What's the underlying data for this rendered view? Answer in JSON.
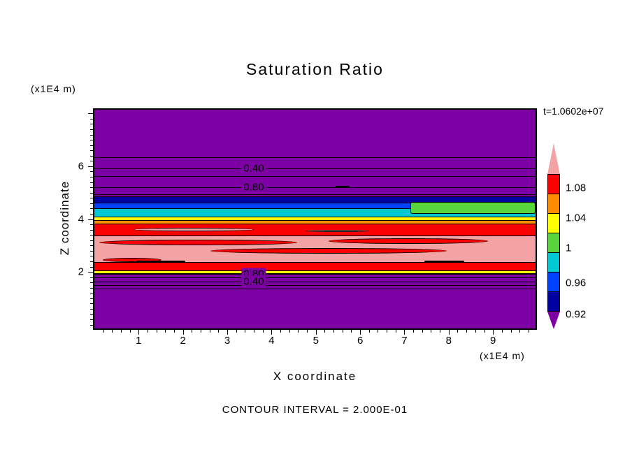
{
  "title": "Saturation Ratio",
  "annotations": {
    "time_label": "t=1.0602e+07",
    "contour_interval_label": "CONTOUR INTERVAL = 2.000E-01",
    "z_axis_unit": "(x1E4 m)",
    "x_axis_unit": "(x1E4 m)"
  },
  "axes": {
    "x_title": "X coordinate",
    "z_title": "Z coordinate",
    "x_tick_labels": [
      "1",
      "2",
      "3",
      "4",
      "5",
      "6",
      "7",
      "8",
      "9"
    ],
    "z_tick_labels": [
      "6",
      "4",
      "2"
    ]
  },
  "colorbar": {
    "labels_top_to_bottom": [
      "1.08",
      "1.04",
      "1",
      "0.96",
      "0.92"
    ],
    "segment_colors_top_to_bottom": [
      "#fa0000",
      "#ff8c00",
      "#ffff00",
      "#57d53b",
      "#00c8d2",
      "#0041ff",
      "#0000a0"
    ],
    "top_arrow_color": "#f3a3a3",
    "bottom_arrow_color": "#7d00a5"
  },
  "chart_data": {
    "type": "heatmap",
    "title": "Saturation Ratio",
    "xlabel": "X coordinate (x1E4 m)",
    "ylabel": "Z coordinate (x1E4 m)",
    "time": "t=1.0602e+07",
    "contour_interval": 0.2,
    "xlim": [
      0,
      9.96
    ],
    "zlim": [
      -0.14,
      8.14
    ],
    "x_ticks": [
      1,
      2,
      3,
      4,
      5,
      6,
      7,
      8,
      9
    ],
    "z_ticks": [
      6,
      4,
      2
    ],
    "colorbar_levels_bottom_to_top": [
      "0.92",
      "0.96",
      "1",
      "1.04",
      "1.08"
    ],
    "bands": [
      {
        "z_from": 4.85,
        "z_to": 8.14,
        "color": "#7d00a5"
      },
      {
        "z_from": 4.63,
        "z_to": 4.85,
        "color": "#0000a0"
      },
      {
        "z_from": 4.42,
        "z_to": 4.63,
        "color": "#0041ff"
      },
      {
        "z_from": 4.1,
        "z_to": 4.42,
        "color": "#00c8d2"
      },
      {
        "z_from": 3.97,
        "z_to": 4.1,
        "color": "#ffff00"
      },
      {
        "z_from": 3.82,
        "z_to": 3.97,
        "color": "#ff8c00"
      },
      {
        "z_from": 3.37,
        "z_to": 3.82,
        "color": "#fa0000"
      },
      {
        "z_from": 2.36,
        "z_to": 3.37,
        "color": "#f3a3a3"
      },
      {
        "z_from": 2.05,
        "z_to": 2.36,
        "color": "#fa0000"
      },
      {
        "z_from": 1.95,
        "z_to": 2.05,
        "color": "#ffff00"
      },
      {
        "z_from": -0.14,
        "z_to": 1.95,
        "color": "#7d00a5"
      }
    ],
    "patches": [
      {
        "x_from": 7.14,
        "x_to": 9.96,
        "z_from": 4.2,
        "z_to": 4.66,
        "color": "#57d53b",
        "shape": "rect"
      },
      {
        "x_from": 0.11,
        "x_to": 4.58,
        "z_from": 3.0,
        "z_to": 3.21,
        "color": "#fa0000",
        "shape": "ellipse"
      },
      {
        "x_from": 5.29,
        "x_to": 8.89,
        "z_from": 3.05,
        "z_to": 3.26,
        "color": "#fa0000",
        "shape": "ellipse"
      },
      {
        "x_from": 2.62,
        "x_to": 7.95,
        "z_from": 2.69,
        "z_to": 2.9,
        "color": "#fa0000",
        "shape": "ellipse"
      },
      {
        "x_from": 0.19,
        "x_to": 1.52,
        "z_from": 2.37,
        "z_to": 2.53,
        "color": "#fa0000",
        "shape": "ellipse"
      },
      {
        "x_from": 0.89,
        "x_to": 3.6,
        "z_from": 3.53,
        "z_to": 3.66,
        "color": "#f3a3a3",
        "shape": "ellipse"
      },
      {
        "x_from": 4.77,
        "x_to": 6.2,
        "z_from": 3.5,
        "z_to": 3.6,
        "color": "#f3a3a3",
        "shape": "ellipse"
      }
    ],
    "contour_lines": [
      {
        "z": 6.35,
        "label": null
      },
      {
        "z": 5.92,
        "label": "0.40"
      },
      {
        "z": 5.63,
        "label": null
      },
      {
        "z": 5.21,
        "label": "0.80"
      },
      {
        "z": 4.95,
        "label": null
      },
      {
        "z": 1.93,
        "label": "0.80"
      },
      {
        "z": 1.78,
        "label": null
      },
      {
        "z": 1.64,
        "label": "0.40"
      },
      {
        "z": 1.5,
        "label": null
      },
      {
        "z": 1.36,
        "label": null
      }
    ],
    "contour_fragments": [
      {
        "x_from": 5.44,
        "x_to": 5.76,
        "z": 5.21,
        "thickness": 3
      },
      {
        "x_from": 0.95,
        "x_to": 2.05,
        "z": 2.4,
        "thickness": 2
      },
      {
        "x_from": 7.45,
        "x_to": 8.35,
        "z": 2.4,
        "thickness": 2
      }
    ]
  }
}
